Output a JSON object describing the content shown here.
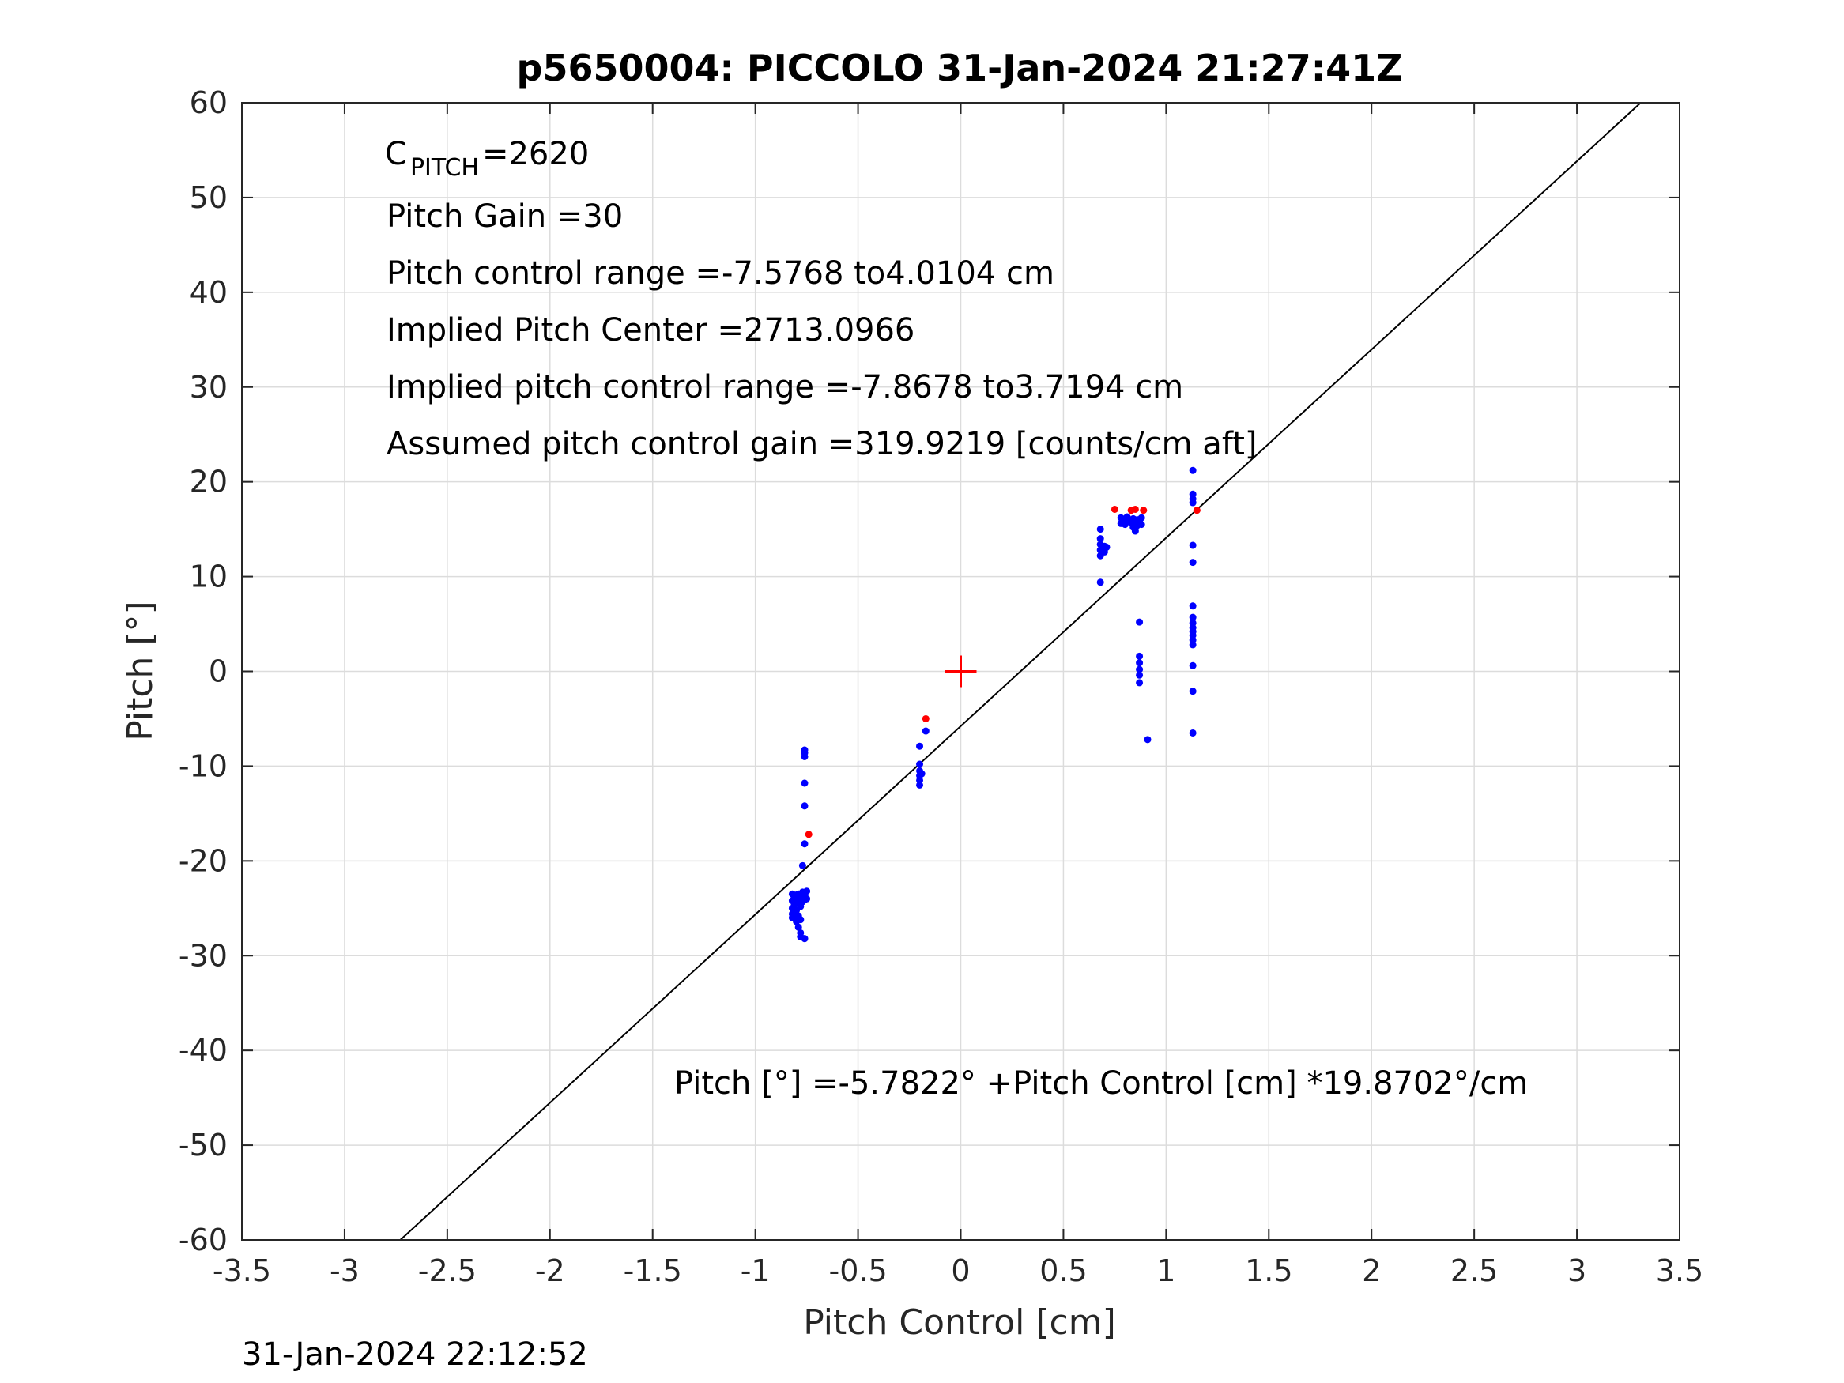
{
  "chart_data": {
    "type": "scatter",
    "title": "p5650004: PICCOLO 31-Jan-2024 21:27:41Z",
    "xlabel": "Pitch Control [cm]",
    "ylabel": "Pitch [°]",
    "xlim": [
      -3.5,
      3.5
    ],
    "ylim": [
      -60,
      60
    ],
    "x_ticks": [
      -3.5,
      -3,
      -2.5,
      -2,
      -1.5,
      -1,
      -0.5,
      0,
      0.5,
      1,
      1.5,
      2,
      2.5,
      3,
      3.5
    ],
    "x_tick_labels": [
      "-3.5",
      "-3",
      "-2.5",
      "-2",
      "-1.5",
      "-1",
      "-0.5",
      "0",
      "0.5",
      "1",
      "1.5",
      "2",
      "2.5",
      "3",
      "3.5"
    ],
    "y_ticks": [
      60,
      50,
      40,
      30,
      20,
      10,
      0,
      -10,
      -20,
      -30,
      -40,
      -50,
      -60
    ],
    "y_tick_labels": [
      "60",
      "50",
      "40",
      "30",
      "20",
      "10",
      "0",
      "-10",
      "-20",
      "-30",
      "-40",
      "-50",
      "-60"
    ],
    "grid": true,
    "colors": {
      "blue": "#0000ff",
      "red": "#ff0000",
      "fit": "#000000",
      "grid": "#dcdcdc",
      "axes": "#262626"
    },
    "fit_line": {
      "intercept": -5.7822,
      "slope": 19.8702
    },
    "center_marker": {
      "x": 0,
      "y": 0
    },
    "series": [
      {
        "color": "blue",
        "points": [
          [
            -0.82,
            -23.5
          ],
          [
            -0.82,
            -24.2
          ],
          [
            -0.82,
            -25.0
          ],
          [
            -0.82,
            -25.6
          ],
          [
            -0.82,
            -26.0
          ],
          [
            -0.81,
            -24.6
          ],
          [
            -0.81,
            -25.3
          ],
          [
            -0.81,
            -23.8
          ],
          [
            -0.8,
            -24.0
          ],
          [
            -0.8,
            -25.2
          ],
          [
            -0.8,
            -26.4
          ],
          [
            -0.8,
            -23.6
          ],
          [
            -0.79,
            -24.4
          ],
          [
            -0.79,
            -25.8
          ],
          [
            -0.79,
            -27.0
          ],
          [
            -0.79,
            -23.5
          ],
          [
            -0.78,
            -24.8
          ],
          [
            -0.78,
            -26.2
          ],
          [
            -0.78,
            -27.6
          ],
          [
            -0.78,
            -28.0
          ],
          [
            -0.78,
            -23.9
          ],
          [
            -0.77,
            -24.3
          ],
          [
            -0.77,
            -23.3
          ],
          [
            -0.76,
            -23.6
          ],
          [
            -0.76,
            -24.1
          ],
          [
            -0.75,
            -23.2
          ],
          [
            -0.75,
            -24.0
          ],
          [
            -0.76,
            -28.2
          ],
          [
            -0.77,
            -20.5
          ],
          [
            -0.76,
            -18.2
          ],
          [
            -0.76,
            -14.2
          ],
          [
            -0.76,
            -11.8
          ],
          [
            -0.76,
            -8.3
          ],
          [
            -0.76,
            -8.6
          ],
          [
            -0.76,
            -9.0
          ],
          [
            -0.2,
            -7.9
          ],
          [
            -0.2,
            -9.8
          ],
          [
            -0.2,
            -10.5
          ],
          [
            -0.2,
            -11.0
          ],
          [
            -0.2,
            -11.5
          ],
          [
            -0.2,
            -12.0
          ],
          [
            -0.19,
            -10.8
          ],
          [
            -0.17,
            -6.3
          ],
          [
            0.68,
            9.4
          ],
          [
            0.68,
            12.2
          ],
          [
            0.68,
            12.8
          ],
          [
            0.68,
            13.4
          ],
          [
            0.68,
            14.0
          ],
          [
            0.68,
            15.0
          ],
          [
            0.69,
            13.0
          ],
          [
            0.7,
            12.6
          ],
          [
            0.7,
            13.2
          ],
          [
            0.71,
            13.1
          ],
          [
            0.78,
            15.6
          ],
          [
            0.78,
            16.2
          ],
          [
            0.79,
            15.8
          ],
          [
            0.8,
            16.0
          ],
          [
            0.8,
            15.5
          ],
          [
            0.81,
            16.3
          ],
          [
            0.82,
            15.9
          ],
          [
            0.83,
            15.7
          ],
          [
            0.84,
            16.1
          ],
          [
            0.84,
            15.2
          ],
          [
            0.85,
            14.8
          ],
          [
            0.85,
            15.6
          ],
          [
            0.86,
            16.0
          ],
          [
            0.86,
            15.4
          ],
          [
            0.87,
            15.9
          ],
          [
            0.88,
            16.2
          ],
          [
            0.88,
            15.5
          ],
          [
            0.87,
            5.2
          ],
          [
            0.87,
            1.6
          ],
          [
            0.87,
            0.9
          ],
          [
            0.87,
            0.2
          ],
          [
            0.87,
            -0.4
          ],
          [
            0.87,
            -1.2
          ],
          [
            0.91,
            -7.2
          ],
          [
            1.13,
            21.2
          ],
          [
            1.13,
            18.7
          ],
          [
            1.13,
            18.2
          ],
          [
            1.13,
            17.8
          ],
          [
            1.13,
            13.3
          ],
          [
            1.13,
            11.5
          ],
          [
            1.13,
            6.9
          ],
          [
            1.13,
            5.7
          ],
          [
            1.13,
            5.1
          ],
          [
            1.13,
            4.6
          ],
          [
            1.13,
            4.2
          ],
          [
            1.13,
            3.8
          ],
          [
            1.13,
            3.3
          ],
          [
            1.13,
            2.8
          ],
          [
            1.13,
            0.6
          ],
          [
            1.13,
            -2.1
          ],
          [
            1.13,
            -6.5
          ]
        ]
      },
      {
        "color": "red",
        "points": [
          [
            -0.74,
            -17.2
          ],
          [
            -0.17,
            -5.0
          ],
          [
            0.75,
            17.1
          ],
          [
            0.83,
            17.0
          ],
          [
            0.85,
            17.1
          ],
          [
            0.89,
            17.0
          ],
          [
            1.15,
            17.0
          ]
        ]
      }
    ],
    "annotations": {
      "c_pitch_main": "C",
      "c_pitch_sub": "PITCH",
      "c_pitch_value": " =2620",
      "pitch_gain": "Pitch Gain =30",
      "control_range": "Pitch control range =-7.5768 to4.0104 cm",
      "implied_center": "Implied Pitch Center =2713.0966",
      "implied_range": "Implied pitch control range =-7.8678 to3.7194 cm",
      "assumed_gain": "Assumed pitch control gain =319.9219 [counts/cm aft]",
      "fit_equation": "Pitch [°] =-5.7822° +Pitch Control [cm] *19.8702°/cm"
    },
    "timestamp": "31-Jan-2024 22:12:52"
  }
}
